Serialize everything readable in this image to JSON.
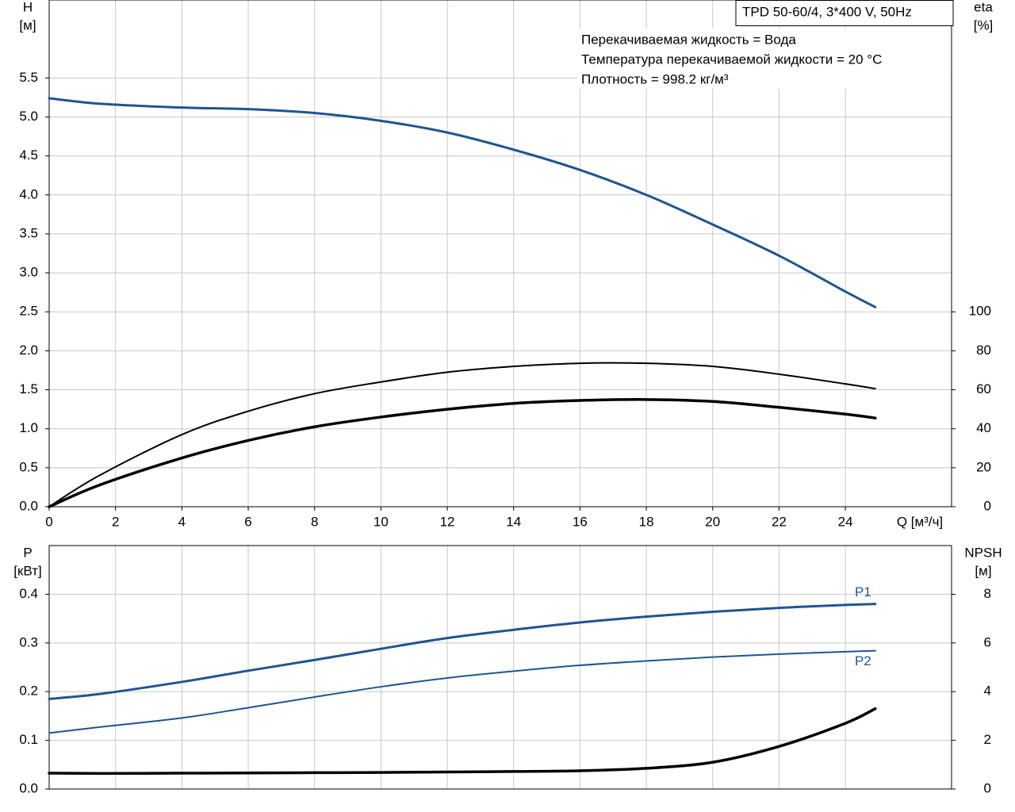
{
  "chart_data": [
    {
      "type": "line",
      "y_label": "H",
      "y_unit": "[м]",
      "y2_label": "eta",
      "y2_unit": "[%]",
      "x_label": "Q [м³/ч]",
      "info": "TPD 50-60/4, 3*400 V, 50Hz",
      "annotations": [
        "Перекачиваемая жидкость = Вода",
        "Температура перекачиваемой жидкости = 20 °C",
        "Плотность = 998.2 кг/м³"
      ],
      "x": [
        0,
        1.5,
        4,
        6,
        8,
        10,
        12,
        14,
        16,
        18,
        20,
        22,
        24,
        24.9
      ],
      "xlim": [
        0,
        27.2
      ],
      "xticks": [
        0,
        2,
        4,
        6,
        8,
        10,
        12,
        14,
        16,
        18,
        20,
        22,
        24
      ],
      "ylim": [
        0,
        6.5
      ],
      "yticks": [
        {
          "value": 0,
          "label": "0.0"
        },
        0.5,
        {
          "value": 1,
          "label": "1.0"
        },
        1.5,
        {
          "value": 2,
          "label": "2.0"
        },
        2.5,
        {
          "value": 3,
          "label": "3.0"
        },
        3.5,
        {
          "value": 4,
          "label": "4.0"
        },
        4.5,
        {
          "value": 5,
          "label": "5.0"
        },
        5.5
      ],
      "y2lim": [
        0,
        260
      ],
      "y2ticks": [
        0,
        20,
        40,
        60,
        80,
        100
      ],
      "grid": true,
      "series": [
        {
          "color": "#1f5591",
          "width": 3,
          "values": [
            5.24,
            5.17,
            5.12,
            5.1,
            5.05,
            4.95,
            4.8,
            4.58,
            4.32,
            4.0,
            3.62,
            3.22,
            2.76,
            2.56
          ]
        },
        {
          "color": "#000000",
          "width": 2,
          "axis": "y2",
          "values": [
            0,
            15.9,
            37,
            49,
            58,
            64,
            69,
            72,
            73.6,
            73.6,
            72,
            68,
            63,
            60.6
          ]
        },
        {
          "color": "#000000",
          "width": 3.5,
          "axis": "y2",
          "values": [
            0,
            11,
            25,
            34,
            41,
            46,
            50,
            53,
            54.5,
            55,
            54,
            51,
            47.5,
            45.5
          ]
        }
      ]
    },
    {
      "type": "line",
      "y_label": "P",
      "y_unit": "[кВт]",
      "y2_label": "NPSH",
      "y2_unit": "[м]",
      "x": [
        0,
        1.5,
        4,
        6,
        8,
        10,
        12,
        14,
        16,
        18,
        20,
        22,
        24,
        24.9
      ],
      "xlim": [
        0,
        27.2
      ],
      "ylim": [
        0,
        0.5
      ],
      "yticks": [
        {
          "value": 0,
          "label": "0.0"
        },
        0.1,
        0.2,
        0.3,
        0.4
      ],
      "y2lim": [
        0,
        10
      ],
      "y2ticks": [
        0,
        2,
        4,
        6,
        8
      ],
      "grid": true,
      "series": [
        {
          "name": "P1",
          "color": "#1f5591",
          "width": 3,
          "values": [
            0.185,
            0.195,
            0.22,
            0.243,
            0.265,
            0.288,
            0.31,
            0.327,
            0.342,
            0.354,
            0.364,
            0.372,
            0.378,
            0.38
          ]
        },
        {
          "name": "P2",
          "color": "#1f5591",
          "width": 2,
          "values": [
            0.115,
            0.127,
            0.146,
            0.167,
            0.189,
            0.21,
            0.228,
            0.242,
            0.254,
            0.263,
            0.271,
            0.277,
            0.282,
            0.284
          ]
        },
        {
          "color": "#000000",
          "width": 3.5,
          "axis": "y2",
          "values": [
            0.65,
            0.64,
            0.65,
            0.66,
            0.67,
            0.68,
            0.7,
            0.72,
            0.75,
            0.85,
            1.1,
            1.75,
            2.7,
            3.3
          ]
        }
      ]
    }
  ]
}
